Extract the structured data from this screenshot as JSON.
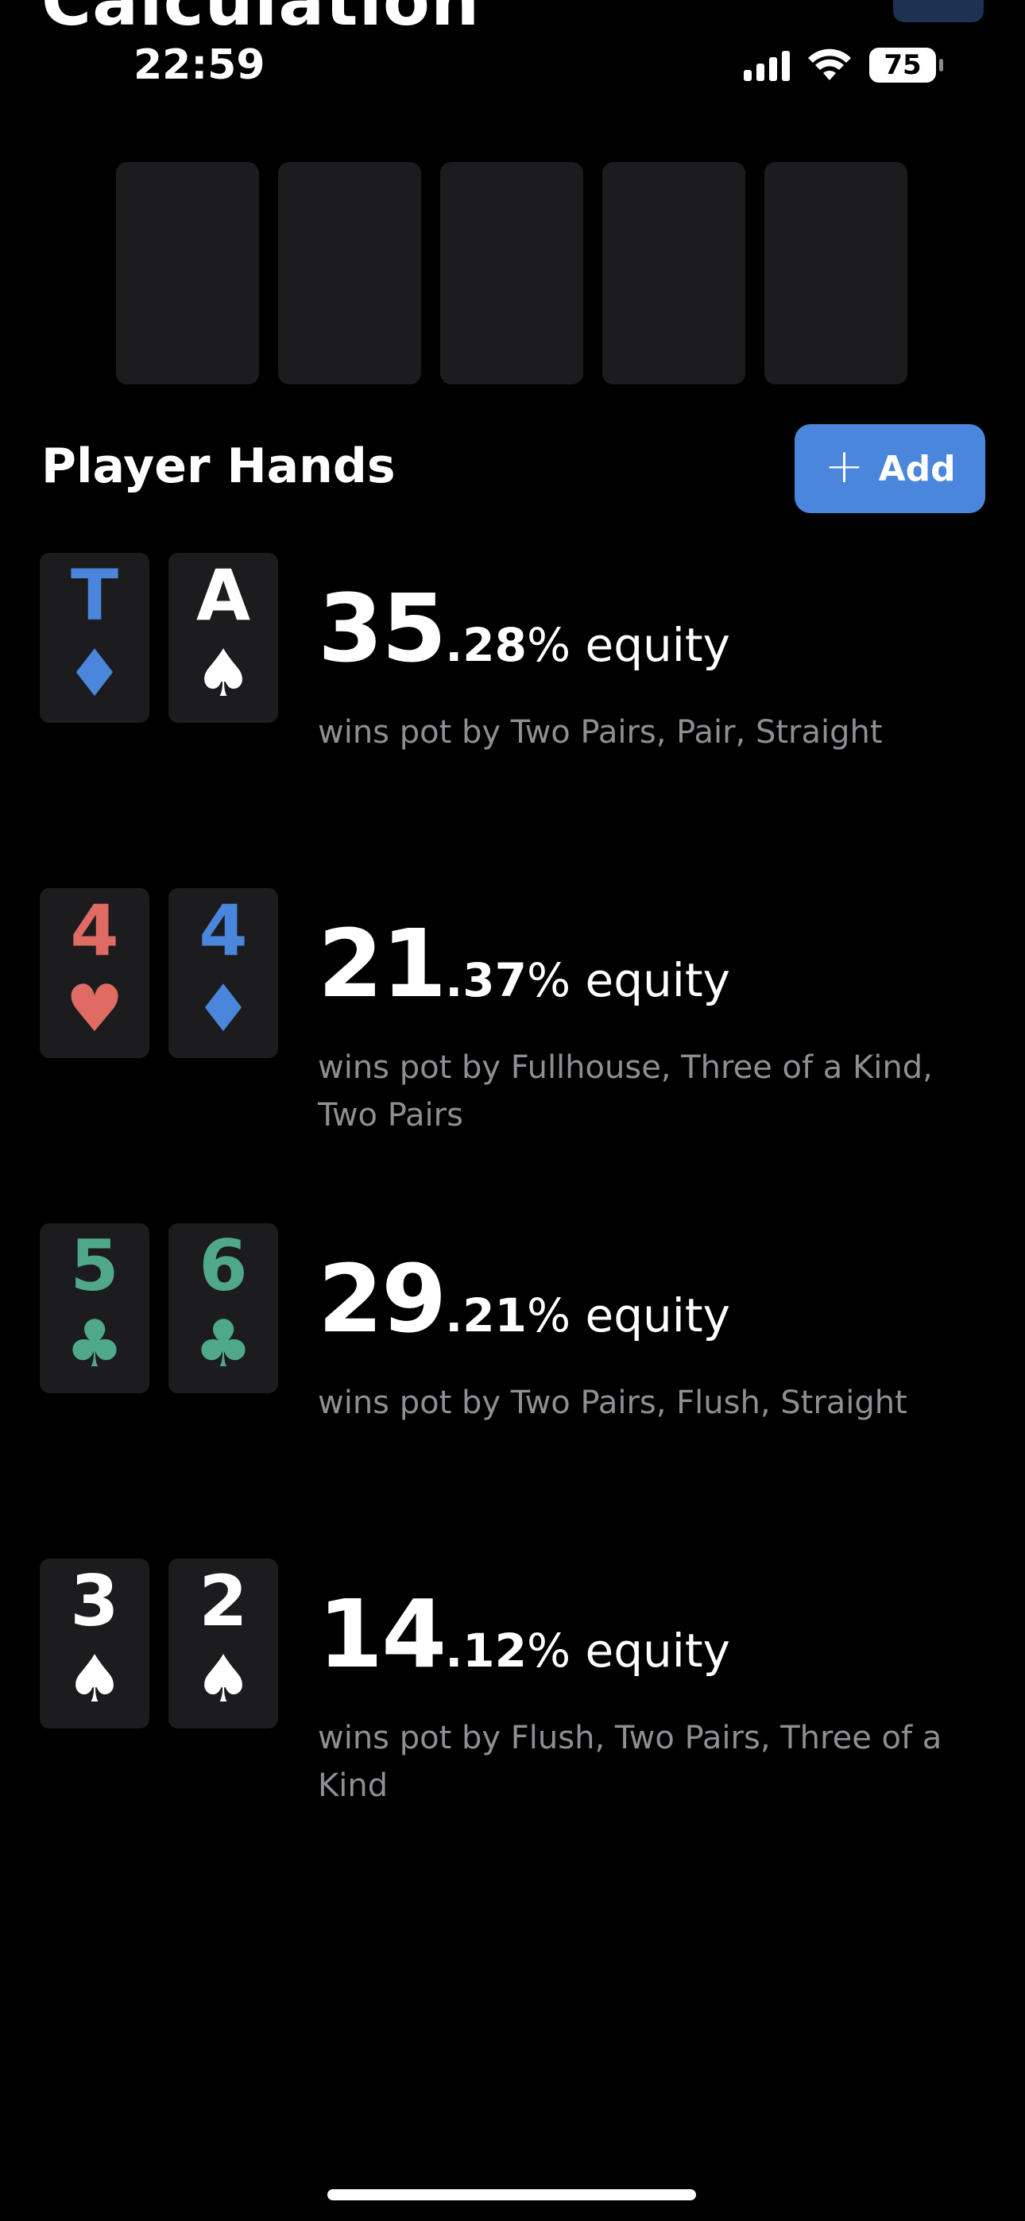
{
  "header": {
    "title": "Calculation"
  },
  "status_bar": {
    "time": "22:59",
    "battery": "75",
    "signal_icon": "signal-icon",
    "wifi_icon": "wifi-icon"
  },
  "section": {
    "title": "Player Hands",
    "add_label": "Add"
  },
  "colors": {
    "blue_suit": "#4a86dc",
    "red_suit": "#e06a64",
    "green_suit": "#4fa88a",
    "white_suit": "#ffffff",
    "card_bg": "#1c1c1e",
    "muted_text": "#8e8e93"
  },
  "hands": [
    {
      "cards": [
        {
          "rank": "T",
          "suit": "♦",
          "suit_name": "diamond-icon",
          "color": "#4a86dc"
        },
        {
          "rank": "A",
          "suit": "♠",
          "suit_name": "spade-icon",
          "color": "#ffffff"
        }
      ],
      "equity_int": "35",
      "equity_dec": ".28",
      "equity_label": "% equity",
      "wins": "wins pot by Two Pairs, Pair, Straight"
    },
    {
      "cards": [
        {
          "rank": "4",
          "suit": "♥",
          "suit_name": "heart-icon",
          "color": "#e06a64"
        },
        {
          "rank": "4",
          "suit": "♦",
          "suit_name": "diamond-icon",
          "color": "#4a86dc"
        }
      ],
      "equity_int": "21",
      "equity_dec": ".37",
      "equity_label": "% equity",
      "wins": "wins pot by Fullhouse, Three of a Kind, Two Pairs"
    },
    {
      "cards": [
        {
          "rank": "5",
          "suit": "♣",
          "suit_name": "club-icon",
          "color": "#4fa88a"
        },
        {
          "rank": "6",
          "suit": "♣",
          "suit_name": "club-icon",
          "color": "#4fa88a"
        }
      ],
      "equity_int": "29",
      "equity_dec": ".21",
      "equity_label": "% equity",
      "wins": "wins pot by Two Pairs, Flush, Straight"
    },
    {
      "cards": [
        {
          "rank": "3",
          "suit": "♠",
          "suit_name": "spade-icon",
          "color": "#ffffff"
        },
        {
          "rank": "2",
          "suit": "♠",
          "suit_name": "spade-icon",
          "color": "#ffffff"
        }
      ],
      "equity_int": "14",
      "equity_dec": ".12",
      "equity_label": "% equity",
      "wins": "wins pot by Flush, Two Pairs, Three of a Kind"
    }
  ]
}
